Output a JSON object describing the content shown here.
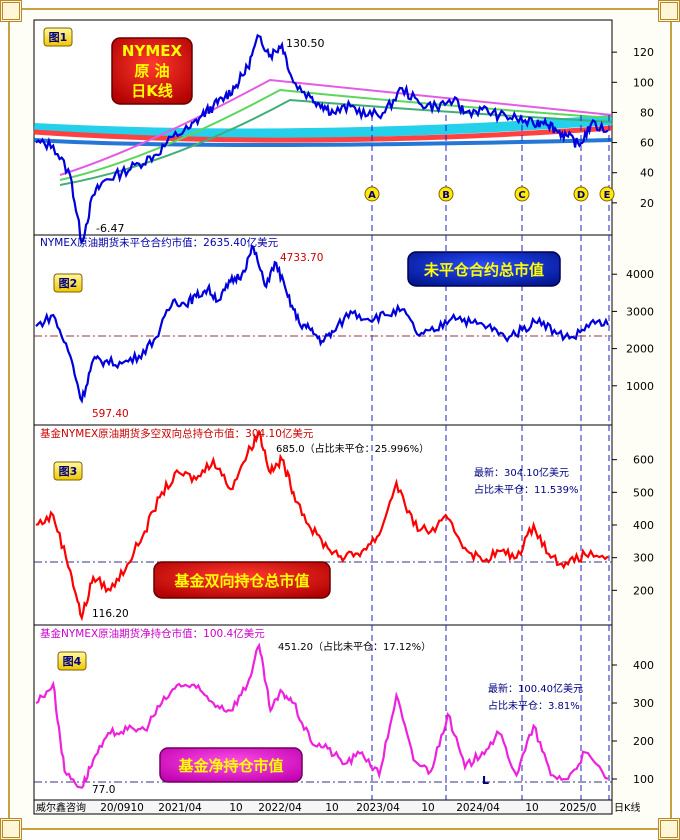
{
  "legend_badges": {
    "p1_title_lines": [
      "NYMEX",
      "原 油",
      "日K线"
    ],
    "p2": "未平仓合约总市值",
    "p3": "基金双向持仓总市值",
    "p4": "基金净持仓市值"
  },
  "footer": {
    "source": "威尔鑫咨询",
    "unit": "日K线",
    "date_ticks": [
      "20/0910",
      "2021/04",
      "10",
      "2022/04",
      "10",
      "2023/04",
      "10",
      "2024/04",
      "10",
      "2025/0"
    ]
  },
  "markers": [
    "A",
    "B",
    "C",
    "D",
    "E"
  ],
  "chart_data": [
    {
      "type": "line",
      "panel_label": "图1",
      "title": "",
      "xlabel": "",
      "ylabel": "",
      "ylim": [
        0,
        140
      ],
      "yticks": [
        "20",
        "40",
        "60",
        "80",
        "100",
        "120"
      ],
      "annotations": [
        "130.50",
        "-6.47"
      ],
      "series": [
        {
          "color": "#0000dd",
          "x": [
            0,
            0.03,
            0.06,
            0.08,
            0.1,
            0.12,
            0.15,
            0.18,
            0.21,
            0.24,
            0.27,
            0.29,
            0.31,
            0.33,
            0.35,
            0.37,
            0.39,
            0.41,
            0.43,
            0.45,
            0.48,
            0.5,
            0.52,
            0.55,
            0.58,
            0.61,
            0.64,
            0.67,
            0.7,
            0.73,
            0.75,
            0.78,
            0.81,
            0.84,
            0.87,
            0.89,
            0.91,
            0.93,
            0.95,
            0.97,
            1.0
          ],
          "values": [
            60,
            58,
            38,
            -6,
            25,
            35,
            40,
            46,
            52,
            64,
            70,
            78,
            84,
            90,
            98,
            110,
            130.5,
            118,
            125,
            100,
            90,
            85,
            80,
            84,
            78,
            80,
            96,
            86,
            84,
            88,
            80,
            82,
            78,
            76,
            72,
            75,
            68,
            64,
            58,
            72,
            68
          ]
        }
      ]
    },
    {
      "type": "line",
      "panel_label": "图2",
      "title": "NYMEX原油期货未平仓合约市值：2635.40亿美元",
      "xlabel": "",
      "ylabel": "",
      "ylim": [
        0,
        5000
      ],
      "yticks": [
        "1000",
        "2000",
        "3000",
        "4000"
      ],
      "annotations": [
        "4733.70",
        "597.40"
      ],
      "series": [
        {
          "color": "#0000dd",
          "x": [
            0,
            0.03,
            0.06,
            0.08,
            0.1,
            0.12,
            0.15,
            0.18,
            0.21,
            0.24,
            0.26,
            0.28,
            0.3,
            0.32,
            0.34,
            0.36,
            0.38,
            0.4,
            0.42,
            0.44,
            0.46,
            0.48,
            0.5,
            0.52,
            0.55,
            0.58,
            0.61,
            0.64,
            0.67,
            0.7,
            0.73,
            0.76,
            0.79,
            0.82,
            0.85,
            0.88,
            0.91,
            0.94,
            0.97,
            1.0
          ],
          "values": [
            2600,
            2900,
            1800,
            600,
            1700,
            1650,
            1600,
            1800,
            2300,
            3300,
            3200,
            3400,
            3600,
            3300,
            3800,
            4000,
            4733.7,
            3700,
            4300,
            3400,
            2700,
            2500,
            2200,
            2450,
            3000,
            2800,
            2900,
            3050,
            2350,
            2500,
            2900,
            2700,
            2600,
            2300,
            2500,
            2800,
            2400,
            2300,
            2700,
            2635
          ]
        }
      ]
    },
    {
      "type": "line",
      "panel_label": "图3",
      "title": "基金NYMEX原油期货多空双向总持仓市值：304.10亿美元",
      "xlabel": "",
      "ylabel": "",
      "ylim": [
        100,
        700
      ],
      "yticks": [
        "200",
        "300",
        "400",
        "500",
        "600"
      ],
      "annotations": [
        "685.0（占比未平仓：25.996%）",
        "116.20",
        "最新：304.10亿美元",
        "占比未平仓：11.539%"
      ],
      "series": [
        {
          "color": "#ff0000",
          "x": [
            0,
            0.03,
            0.06,
            0.08,
            0.1,
            0.13,
            0.16,
            0.19,
            0.22,
            0.25,
            0.28,
            0.31,
            0.34,
            0.37,
            0.39,
            0.41,
            0.43,
            0.45,
            0.48,
            0.51,
            0.54,
            0.57,
            0.6,
            0.63,
            0.66,
            0.69,
            0.72,
            0.75,
            0.78,
            0.81,
            0.84,
            0.87,
            0.9,
            0.93,
            0.96,
            1.0
          ],
          "values": [
            400,
            430,
            260,
            116,
            240,
            200,
            280,
            380,
            500,
            560,
            540,
            600,
            510,
            620,
            685,
            560,
            600,
            500,
            390,
            330,
            300,
            320,
            370,
            530,
            400,
            380,
            420,
            330,
            290,
            320,
            300,
            400,
            300,
            280,
            310,
            304
          ]
        }
      ]
    },
    {
      "type": "line",
      "panel_label": "图4",
      "title": "基金NYMEX原油期货净持仓市值：100.4亿美元",
      "xlabel": "",
      "ylabel": "",
      "ylim": [
        50,
        500
      ],
      "yticks": [
        "100",
        "200",
        "300",
        "400"
      ],
      "annotations": [
        "451.20（占比未平仓：17.12%）",
        "77.0",
        "最新：100.40亿美元",
        "占比未平仓：3.81%",
        "L"
      ],
      "series": [
        {
          "color": "#ee22dd",
          "x": [
            0,
            0.03,
            0.05,
            0.08,
            0.1,
            0.13,
            0.16,
            0.19,
            0.22,
            0.25,
            0.28,
            0.31,
            0.34,
            0.37,
            0.39,
            0.41,
            0.43,
            0.45,
            0.48,
            0.51,
            0.54,
            0.57,
            0.6,
            0.63,
            0.66,
            0.69,
            0.72,
            0.75,
            0.78,
            0.81,
            0.84,
            0.87,
            0.9,
            0.93,
            0.96,
            1.0
          ],
          "values": [
            300,
            350,
            120,
            77,
            150,
            220,
            230,
            230,
            300,
            350,
            340,
            300,
            280,
            350,
            451.2,
            280,
            330,
            300,
            200,
            180,
            140,
            170,
            110,
            320,
            150,
            120,
            270,
            130,
            170,
            220,
            110,
            240,
            110,
            100,
            170,
            100.4
          ]
        }
      ]
    }
  ]
}
